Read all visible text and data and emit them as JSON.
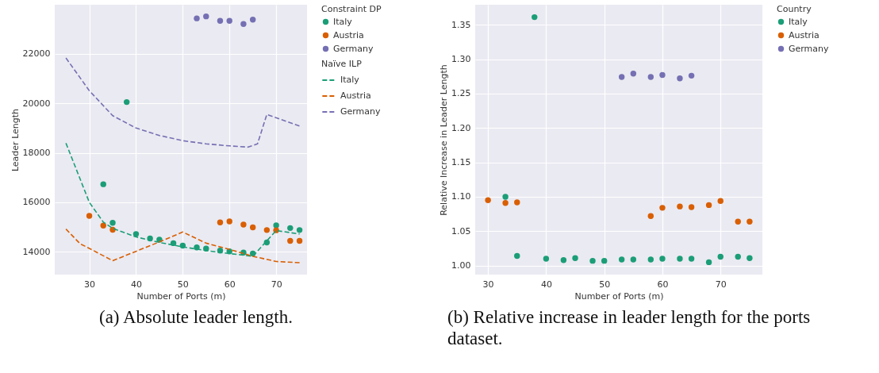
{
  "chart_data": [
    {
      "type": "scatter",
      "xlabel": "Number of Ports (m)",
      "ylabel": "Leader Length",
      "annotations": [
        "(a) Absolute leader length."
      ],
      "xlim": [
        22.6,
        76.6
      ],
      "xticks": [
        30,
        40,
        50,
        60,
        70
      ],
      "ylim": [
        13080,
        23980
      ],
      "yticks": [
        {
          "value": 14000,
          "label": "14000"
        },
        {
          "value": 16000,
          "label": "16000"
        },
        {
          "value": 18000,
          "label": "18000"
        },
        {
          "value": 20000,
          "label": "20000"
        },
        {
          "value": 22000,
          "label": "22000"
        }
      ],
      "grid": true,
      "legend": "right",
      "legend_title": [
        "Constraint DP",
        "Naïve ILP"
      ],
      "line_style": "dashed",
      "series": [
        {
          "name": "Italy",
          "type": "scatter",
          "marker": "circle",
          "color": "#1b9e77",
          "x": [
            33,
            35,
            38,
            40,
            43,
            45,
            48,
            50,
            53,
            55,
            58,
            60,
            63,
            65,
            68,
            70,
            73,
            75
          ],
          "values": [
            16730,
            15170,
            20050,
            14720,
            14540,
            14490,
            14350,
            14250,
            14180,
            14130,
            14050,
            14020,
            13970,
            13930,
            14380,
            15070,
            14960,
            14880
          ]
        },
        {
          "name": "Austria",
          "type": "scatter",
          "marker": "circle",
          "color": "#d95f02",
          "x": [
            30,
            33,
            35,
            58,
            60,
            63,
            65,
            68,
            70,
            73,
            75
          ],
          "values": [
            15450,
            15060,
            14890,
            15190,
            15230,
            15100,
            14990,
            14880,
            14870,
            14440,
            14440
          ]
        },
        {
          "name": "Germany",
          "type": "scatter",
          "marker": "circle",
          "color": "#7570b3",
          "x": [
            53,
            55,
            58,
            60,
            63,
            65
          ],
          "values": [
            23430,
            23510,
            23330,
            23330,
            23200,
            23380
          ]
        },
        {
          "name": "Italy",
          "type": "line",
          "color": "#1b9e77",
          "x": [
            25,
            30,
            33,
            35,
            40,
            45,
            50,
            55,
            60,
            65,
            70,
            75
          ],
          "values": [
            18390,
            16000,
            15200,
            14950,
            14600,
            14380,
            14200,
            14050,
            13930,
            13820,
            14860,
            14720
          ]
        },
        {
          "name": "Austria",
          "type": "line",
          "color": "#d95f02",
          "x": [
            25,
            28,
            30,
            35,
            40,
            45,
            50,
            55,
            60,
            65,
            70,
            75
          ],
          "values": [
            14920,
            14330,
            14140,
            13640,
            14020,
            14400,
            14800,
            14350,
            14100,
            13820,
            13610,
            13560
          ]
        },
        {
          "name": "Germany",
          "type": "line",
          "color": "#7570b3",
          "x": [
            25,
            30,
            35,
            40,
            45,
            50,
            55,
            60,
            64,
            66,
            68,
            75
          ],
          "values": [
            21830,
            20510,
            19500,
            19000,
            18700,
            18490,
            18360,
            18280,
            18230,
            18360,
            19550,
            19080
          ]
        }
      ]
    },
    {
      "type": "scatter",
      "xlabel": "Number of Ports (m)",
      "ylabel": "Relative Increase in Leader Length",
      "annotations": [
        "(b) Relative increase in leader length for the ports dataset."
      ],
      "xlim": [
        27.8,
        77.2
      ],
      "xticks": [
        30,
        40,
        50,
        60,
        70
      ],
      "ylim": [
        0.987,
        1.379
      ],
      "yticks": [
        {
          "value": 1.0,
          "label": "1.00"
        },
        {
          "value": 1.05,
          "label": "1.05"
        },
        {
          "value": 1.1,
          "label": "1.10"
        },
        {
          "value": 1.15,
          "label": "1.15"
        },
        {
          "value": 1.2,
          "label": "1.20"
        },
        {
          "value": 1.25,
          "label": "1.25"
        },
        {
          "value": 1.3,
          "label": "1.30"
        },
        {
          "value": 1.35,
          "label": "1.35"
        }
      ],
      "grid": true,
      "legend": "right",
      "legend_title": "Country",
      "marker": "circle",
      "series": [
        {
          "name": "Italy",
          "color": "#1b9e77",
          "x": [
            33,
            35,
            38,
            40,
            43,
            45,
            48,
            50,
            53,
            55,
            58,
            60,
            63,
            65,
            68,
            70,
            73,
            75
          ],
          "values": [
            1.1,
            1.014,
            1.361,
            1.01,
            1.008,
            1.011,
            1.007,
            1.007,
            1.009,
            1.009,
            1.009,
            1.01,
            1.01,
            1.01,
            1.005,
            1.013,
            1.013,
            1.011
          ]
        },
        {
          "name": "Austria",
          "color": "#d95f02",
          "x": [
            30,
            33,
            35,
            58,
            60,
            63,
            65,
            68,
            70,
            73,
            75
          ],
          "values": [
            1.095,
            1.091,
            1.092,
            1.072,
            1.084,
            1.086,
            1.085,
            1.088,
            1.094,
            1.064,
            1.064
          ]
        },
        {
          "name": "Germany",
          "color": "#7570b3",
          "x": [
            53,
            55,
            58,
            60,
            63,
            65
          ],
          "values": [
            1.274,
            1.279,
            1.274,
            1.277,
            1.272,
            1.276
          ]
        }
      ]
    }
  ]
}
